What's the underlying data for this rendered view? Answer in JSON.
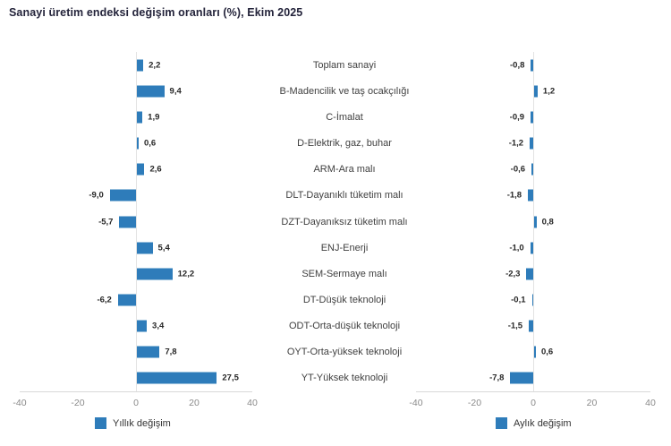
{
  "title": "Sanayi üretim endeksi değişim oranları (%), Ekim 2025",
  "colors": {
    "bar": "#2e7cba",
    "axis_line": "#d9d9d9",
    "zero_line": "#e3e3e3",
    "tick_text": "#8a8a8a",
    "value_text": "#262626",
    "category_text": "#404040",
    "title_text": "#23233a"
  },
  "chart_data": {
    "type": "bar",
    "orientation": "horizontal",
    "title": "Sanayi üretim endeksi değişim oranları (%), Ekim 2025",
    "xlim": [
      -40,
      40
    ],
    "ticks": [
      "-40",
      "-20",
      "0",
      "20",
      "40"
    ],
    "grid": false,
    "legend_position": "bottom",
    "categories": [
      "Toplam sanayi",
      "B-Madencilik ve taş ocakçılığı",
      "C-İmalat",
      "D-Elektrik, gaz, buhar",
      "ARM-Ara malı",
      "DLT-Dayanıklı tüketim malı",
      "DZT-Dayanıksız tüketim malı",
      "ENJ-Enerji",
      "SEM-Sermaye malı",
      "DT-Düşük teknoloji",
      "ODT-Orta-düşük teknoloji",
      "OYT-Orta-yüksek teknoloji",
      "YT-Yüksek teknoloji"
    ],
    "series": [
      {
        "name": "Yıllık değişim",
        "values": [
          2.2,
          9.4,
          1.9,
          0.6,
          2.6,
          -9.0,
          -5.7,
          5.4,
          12.2,
          -6.2,
          3.4,
          7.8,
          27.5
        ],
        "labels": [
          "2,2",
          "9,4",
          "1,9",
          "0,6",
          "2,6",
          "-9,0",
          "-5,7",
          "5,4",
          "12,2",
          "-6,2",
          "3,4",
          "7,8",
          "27,5"
        ]
      },
      {
        "name": "Aylık değişim",
        "values": [
          -0.8,
          1.2,
          -0.9,
          -1.2,
          -0.6,
          -1.8,
          0.8,
          -1.0,
          -2.3,
          -0.1,
          -1.5,
          0.6,
          -7.8
        ],
        "labels": [
          "-0,8",
          "1,2",
          "-0,9",
          "-1,2",
          "-0,6",
          "-1,8",
          "0,8",
          "-1,0",
          "-2,3",
          "-0,1",
          "-1,5",
          "0,6",
          "-7,8"
        ]
      }
    ]
  }
}
